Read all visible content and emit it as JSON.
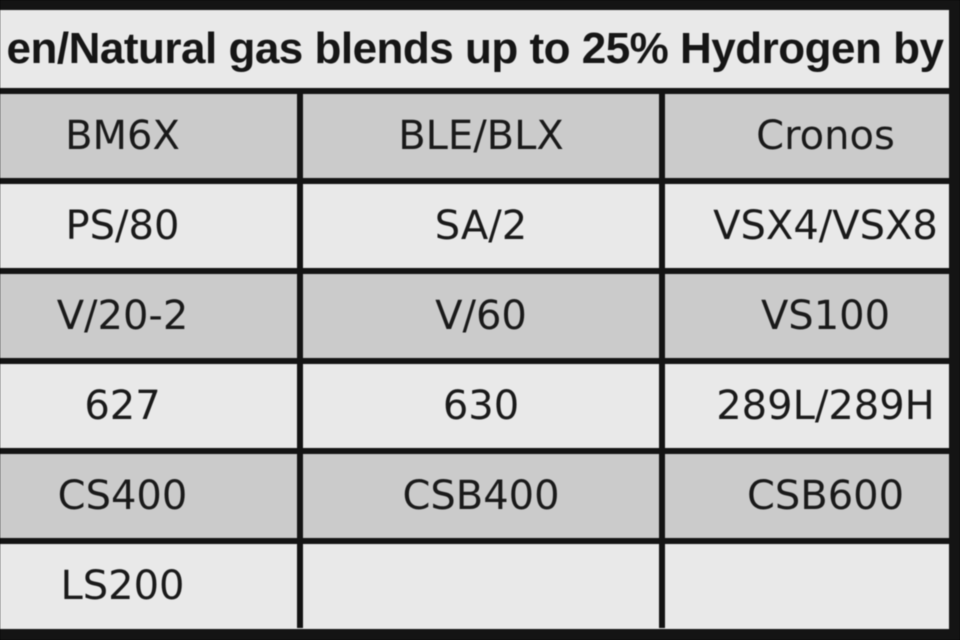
{
  "header": {
    "title": "en/Natural gas blends up to 25% Hydrogen by"
  },
  "table": {
    "rows": [
      [
        "BM6X",
        "BLE/BLX",
        "Cronos"
      ],
      [
        "PS/80",
        "SA/2",
        "VSX4/VSX8"
      ],
      [
        "V/20-2",
        "V/60",
        "VS100"
      ],
      [
        "627",
        "630",
        "289L/289H"
      ],
      [
        "CS400",
        "CSB400",
        "CSB600"
      ],
      [
        "LS200",
        "",
        ""
      ]
    ]
  },
  "colors": {
    "row_shaded": "#cbcbcb",
    "row_light": "#e9e9e9",
    "border": "#141414",
    "text": "#1a1a1a"
  }
}
